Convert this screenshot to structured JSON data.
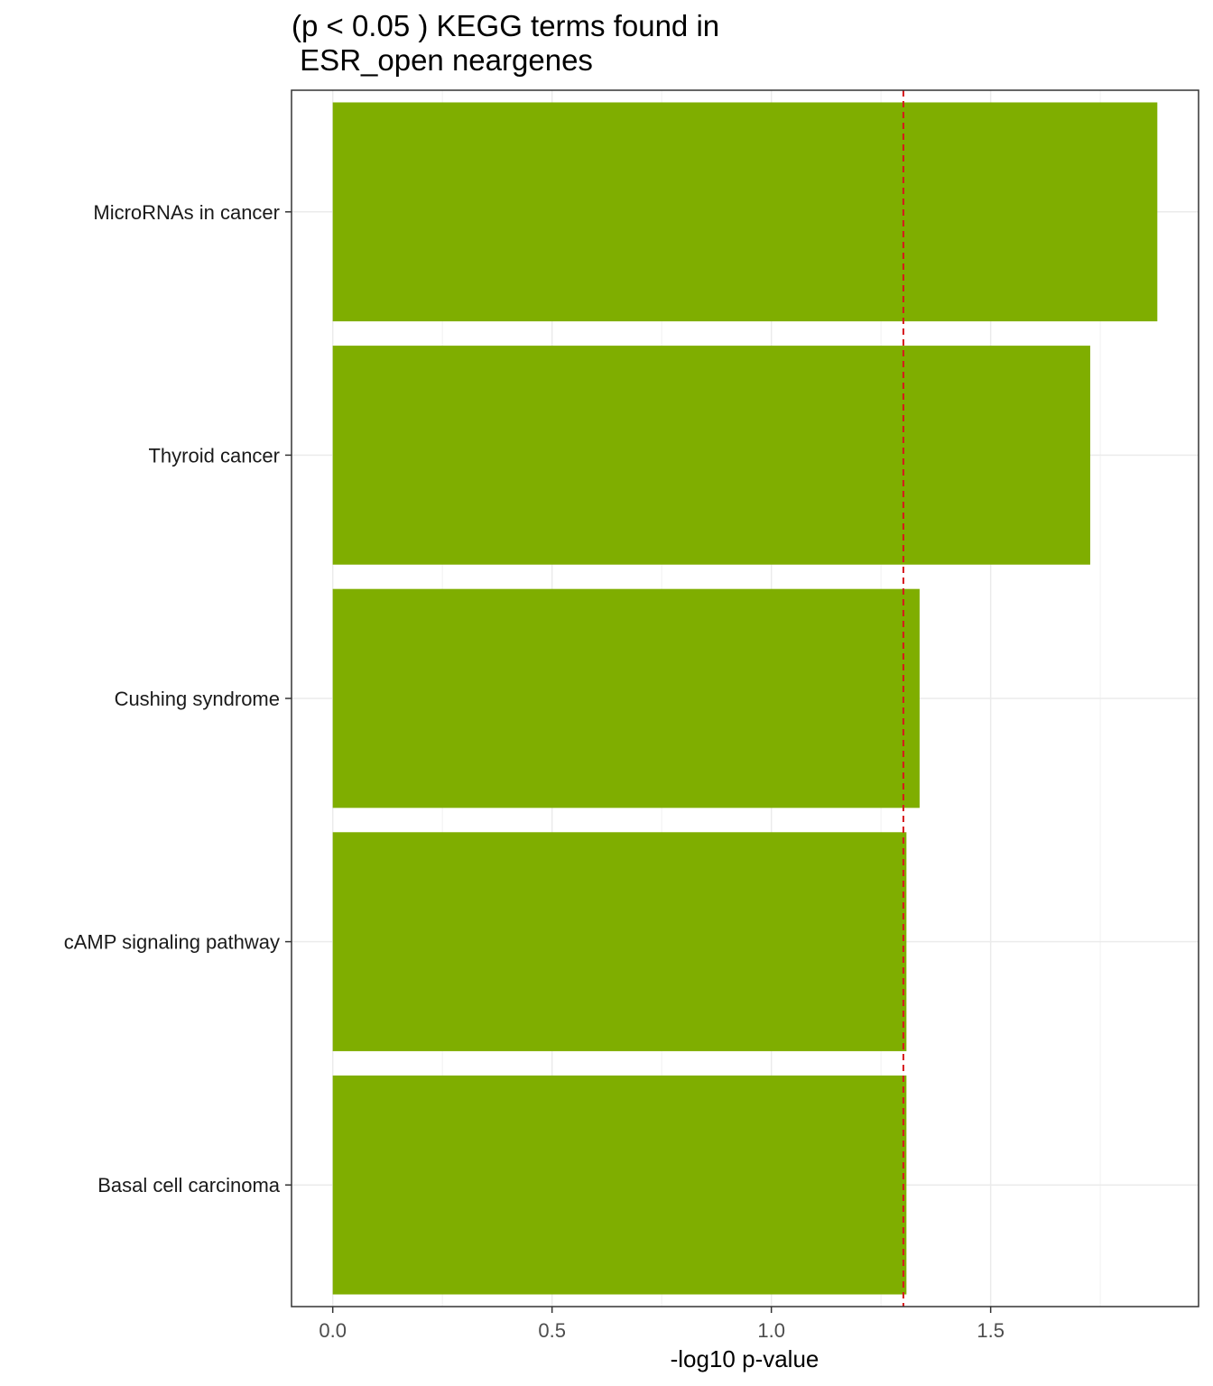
{
  "chart_data": {
    "type": "bar",
    "orientation": "horizontal",
    "title_lines": [
      "(p < 0.05 ) KEGG terms found in",
      " ESR_open neargenes"
    ],
    "xlabel": "-log10 p-value",
    "ylabel": "",
    "categories": [
      "MicroRNAs in cancer",
      "Thyroid cancer",
      "Cushing syndrome",
      "cAMP signaling pathway",
      "Basal cell carcinoma"
    ],
    "values": [
      1.88,
      1.727,
      1.338,
      1.308,
      1.308
    ],
    "xlim": [
      -0.094,
      1.974
    ],
    "xticks": [
      0.0,
      0.5,
      1.0,
      1.5
    ],
    "xtick_labels": [
      "0.0",
      "0.5",
      "1.0",
      "1.5"
    ],
    "reference_line": {
      "value": 1.301,
      "style": "dashed",
      "color": "#D7191C"
    },
    "bar_color": "#7FAE00",
    "grid": true,
    "legend": "none"
  }
}
